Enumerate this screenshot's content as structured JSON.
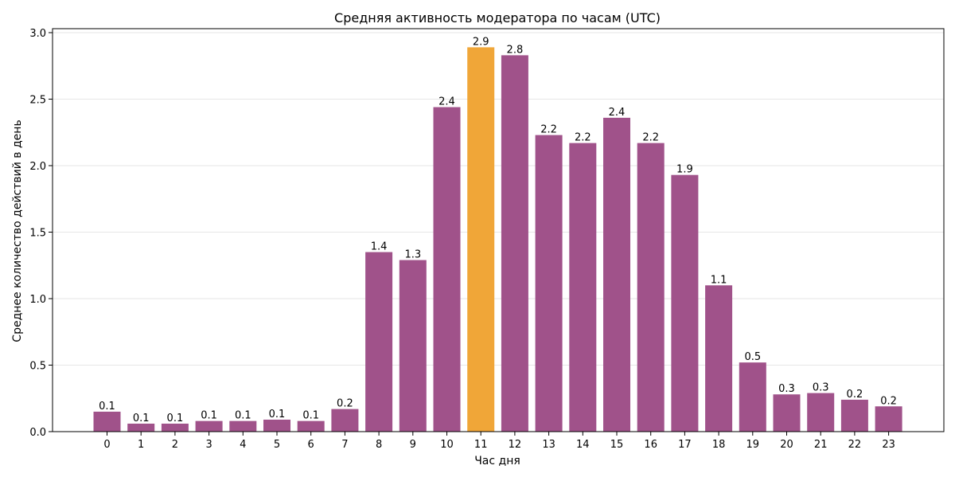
{
  "chart_data": {
    "type": "bar",
    "title": "Средняя активность модератора по часам (UTC)",
    "xlabel": "Час дня",
    "ylabel": "Среднее количество действий в день",
    "ylim": [
      0,
      3.03
    ],
    "yticks": [
      0.0,
      0.5,
      1.0,
      1.5,
      2.0,
      2.5,
      3.0
    ],
    "ytick_labels": [
      "0.0",
      "0.5",
      "1.0",
      "1.5",
      "2.0",
      "2.5",
      "3.0"
    ],
    "grid": "horizontal",
    "categories": [
      "0",
      "1",
      "2",
      "3",
      "4",
      "5",
      "6",
      "7",
      "8",
      "9",
      "10",
      "11",
      "12",
      "13",
      "14",
      "15",
      "16",
      "17",
      "18",
      "19",
      "20",
      "21",
      "22",
      "23"
    ],
    "values": [
      0.15,
      0.06,
      0.06,
      0.08,
      0.08,
      0.09,
      0.08,
      0.17,
      1.35,
      1.29,
      2.44,
      2.89,
      2.83,
      2.23,
      2.17,
      2.36,
      2.17,
      1.93,
      1.1,
      0.52,
      0.28,
      0.29,
      0.24,
      0.19
    ],
    "value_labels": [
      "0.1",
      "0.1",
      "0.1",
      "0.1",
      "0.1",
      "0.1",
      "0.1",
      "0.2",
      "1.4",
      "1.3",
      "2.4",
      "2.9",
      "2.8",
      "2.2",
      "2.2",
      "2.4",
      "2.2",
      "1.9",
      "1.1",
      "0.5",
      "0.3",
      "0.3",
      "0.2",
      "0.2"
    ],
    "highlight_index": 11,
    "colors": {
      "bar": "#a0528a",
      "highlight": "#f0a638",
      "grid": "#e6e6e6",
      "axis": "#000000"
    }
  }
}
